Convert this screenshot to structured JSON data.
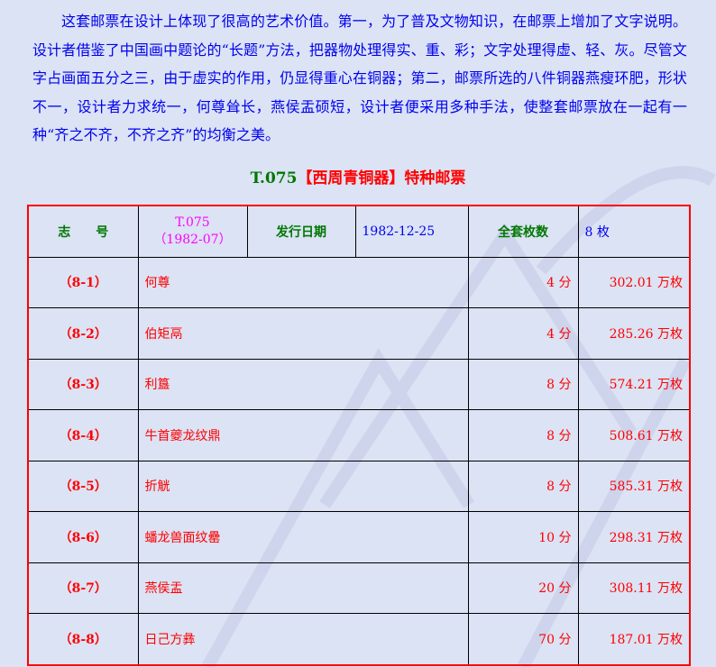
{
  "intro": "这套邮票在设计上体现了很高的艺术价值。第一，为了普及文物知识，在邮票上增加了文字说明。设计者借鉴了中国画中题论的“长题”方法，把器物处理得实、重、彩；文字处理得虚、轻、灰。尽管文字占画面五分之三，由于虚实的作用，仍显得重心在铜器；第二，邮票所选的八件铜器燕瘦环肥，形状不一，设计者力求统一，何尊耸长，燕侯盂硕短，设计者便采用多种手法，使整套邮票放在一起有一种“齐之不齐，不齐之齐”的均衡之美。",
  "title": {
    "code": "T.075",
    "name": "【西周青铜器】特种邮票"
  },
  "header": {
    "label_number": "志　　号",
    "number_code": "T.075",
    "number_year": "（1982-07）",
    "label_date": "发行日期",
    "date": "1982-12-25",
    "label_count": "全套枚数",
    "count": "8 枚"
  },
  "rows": [
    {
      "no": "（8-1）",
      "name": "何尊",
      "value": "4 分",
      "issued": "302.01 万枚"
    },
    {
      "no": "（8-2）",
      "name": "伯矩鬲",
      "value": "4 分",
      "issued": "285.26 万枚"
    },
    {
      "no": "（8-3）",
      "name": "利簋",
      "value": "8 分",
      "issued": "574.21 万枚"
    },
    {
      "no": "（8-4）",
      "name": "牛首夔龙纹鼎",
      "value": "8 分",
      "issued": "508.61 万枚"
    },
    {
      "no": "（8-5）",
      "name": "折觥",
      "value": "8 分",
      "issued": "585.31 万枚"
    },
    {
      "no": "（8-6）",
      "name": "蟠龙兽面纹罍",
      "value": "10 分",
      "issued": "298.31 万枚"
    },
    {
      "no": "（8-7）",
      "name": "燕侯盂",
      "value": "20 分",
      "issued": "308.11 万枚"
    },
    {
      "no": "（8-8）",
      "name": "日己方彝",
      "value": "70 分",
      "issued": "187.01 万枚"
    }
  ],
  "colors": {
    "background": "#dbe3f4",
    "text": "#0000ee",
    "accent_red": "#ff0000",
    "accent_green": "#007700",
    "magenta": "#ff00ff"
  }
}
